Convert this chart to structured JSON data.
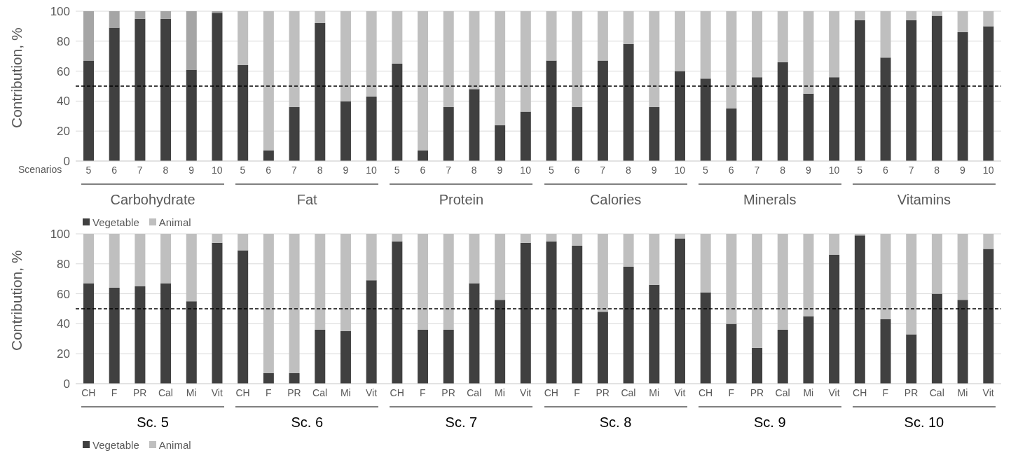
{
  "chart_data": [
    {
      "type": "bar",
      "stacked": true,
      "categories": [
        "5",
        "6",
        "7",
        "8",
        "9",
        "10",
        "5",
        "6",
        "7",
        "8",
        "9",
        "10",
        "5",
        "6",
        "7",
        "8",
        "9",
        "10",
        "5",
        "6",
        "7",
        "8",
        "9",
        "10",
        "5",
        "6",
        "7",
        "8",
        "9",
        "10",
        "5",
        "6",
        "7",
        "8",
        "9",
        "10"
      ],
      "series": [
        {
          "name": "Vegetable",
          "color": "#404040",
          "values": [
            67,
            89,
            95,
            95,
            61,
            99,
            64,
            7,
            36,
            92,
            40,
            43,
            65,
            7,
            36,
            48,
            24,
            33,
            67,
            36,
            67,
            78,
            36,
            60,
            55,
            35,
            56,
            66,
            45,
            56,
            94,
            69,
            94,
            97,
            86,
            90
          ]
        },
        {
          "name": "Animal",
          "color": "#bfbfbf",
          "colors": [
            "#a5a5a5",
            "#a5a5a5",
            "#a5a5a5",
            "#a5a5a5",
            "#a5a5a5",
            "#a5a5a5",
            "#bfbfbf",
            "#bfbfbf",
            "#bfbfbf",
            "#bfbfbf",
            "#bfbfbf",
            "#bfbfbf",
            "#bfbfbf",
            "#bfbfbf",
            "#bfbfbf",
            "#bfbfbf",
            "#bfbfbf",
            "#bfbfbf",
            "#bfbfbf",
            "#bfbfbf",
            "#bfbfbf",
            "#bfbfbf",
            "#bfbfbf",
            "#bfbfbf",
            "#bfbfbf",
            "#bfbfbf",
            "#bfbfbf",
            "#bfbfbf",
            "#bfbfbf",
            "#bfbfbf",
            "#bfbfbf",
            "#bfbfbf",
            "#bfbfbf",
            "#bfbfbf",
            "#bfbfbf",
            "#bfbfbf"
          ],
          "values": [
            33,
            11,
            5,
            5,
            39,
            1,
            36,
            93,
            64,
            8,
            60,
            57,
            35,
            93,
            64,
            52,
            76,
            67,
            33,
            64,
            33,
            22,
            64,
            40,
            45,
            65,
            44,
            34,
            55,
            44,
            6,
            31,
            6,
            3,
            14,
            10
          ]
        }
      ],
      "xlabel": "Scenarios",
      "ylabel": "Contribution, %",
      "annotations": [
        "Carbohydrate",
        "Fat",
        "Protein",
        "Calories",
        "Minerals",
        "Vitamins"
      ],
      "ylim": [
        0,
        100
      ],
      "yticks": [
        0,
        20,
        40,
        60,
        80,
        100
      ],
      "grid": "y",
      "legend": "bottom",
      "ref_lines": [
        {
          "axis": "y",
          "value": 50,
          "label": null,
          "color": "#000000",
          "line_style": "dashed"
        }
      ]
    },
    {
      "type": "bar",
      "stacked": true,
      "categories": [
        "CH",
        "F",
        "PR",
        "Cal",
        "Mi",
        "Vit",
        "CH",
        "F",
        "PR",
        "Cal",
        "Mi",
        "Vit",
        "CH",
        "F",
        "PR",
        "Cal",
        "Mi",
        "Vit",
        "CH",
        "F",
        "PR",
        "Cal",
        "Mi",
        "Vit",
        "CH",
        "F",
        "PR",
        "Cal",
        "Mi",
        "Vit",
        "CH",
        "F",
        "PR",
        "Cal",
        "Mi",
        "Vit"
      ],
      "series": [
        {
          "name": "Vegetable",
          "color": "#404040",
          "values": [
            67,
            64,
            65,
            67,
            55,
            94,
            89,
            7,
            7,
            36,
            35,
            69,
            95,
            36,
            36,
            67,
            56,
            94,
            95,
            92,
            48,
            78,
            66,
            97,
            61,
            40,
            24,
            36,
            45,
            86,
            99,
            43,
            33,
            60,
            56,
            90
          ]
        },
        {
          "name": "Animal",
          "color": "#bfbfbf",
          "values": [
            33,
            36,
            35,
            33,
            45,
            6,
            11,
            93,
            93,
            64,
            65,
            31,
            5,
            64,
            64,
            33,
            44,
            6,
            5,
            8,
            52,
            22,
            34,
            3,
            39,
            60,
            76,
            64,
            55,
            14,
            1,
            57,
            67,
            40,
            44,
            10
          ]
        }
      ],
      "ylabel": "Contribution, %",
      "annotations": [
        "Sc. 5",
        "Sc. 6",
        "Sc. 7",
        "Sc. 8",
        "Sc. 9",
        "Sc. 10"
      ],
      "ylim": [
        0,
        100
      ],
      "yticks": [
        0,
        20,
        40,
        60,
        80,
        100
      ],
      "grid": "y",
      "legend": "bottom",
      "ref_lines": [
        {
          "axis": "y",
          "value": 50,
          "label": null,
          "color": "#000000",
          "line_style": "dashed"
        }
      ]
    }
  ]
}
